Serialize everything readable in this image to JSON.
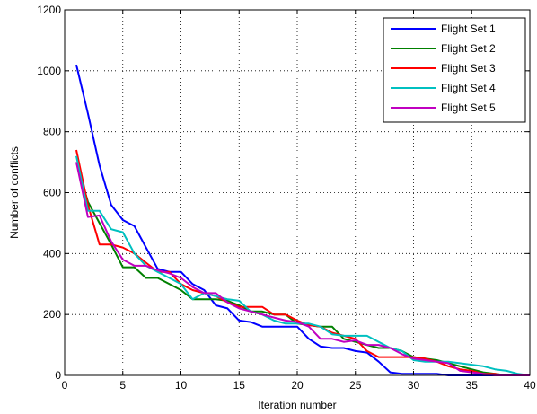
{
  "chart_data": {
    "type": "line",
    "xlabel": "Iteration number",
    "ylabel": "Number of conflicts",
    "xlim": [
      0,
      40
    ],
    "ylim": [
      0,
      1200
    ],
    "xticks": [
      0,
      5,
      10,
      15,
      20,
      25,
      30,
      35,
      40
    ],
    "yticks": [
      0,
      200,
      400,
      600,
      800,
      1000,
      1200
    ],
    "grid": true,
    "grid_style": "dotted",
    "legend_position": "top-right",
    "series": [
      {
        "name": "Flight Set 1",
        "color": "#0000ff",
        "points": [
          [
            1,
            1020
          ],
          [
            2,
            860
          ],
          [
            3,
            690
          ],
          [
            4,
            560
          ],
          [
            5,
            510
          ],
          [
            6,
            490
          ],
          [
            7,
            420
          ],
          [
            8,
            350
          ],
          [
            9,
            340
          ],
          [
            10,
            340
          ],
          [
            11,
            300
          ],
          [
            12,
            280
          ],
          [
            13,
            230
          ],
          [
            14,
            220
          ],
          [
            15,
            180
          ],
          [
            16,
            175
          ],
          [
            17,
            160
          ],
          [
            18,
            160
          ],
          [
            19,
            160
          ],
          [
            20,
            160
          ],
          [
            21,
            120
          ],
          [
            22,
            95
          ],
          [
            23,
            90
          ],
          [
            24,
            90
          ],
          [
            25,
            80
          ],
          [
            26,
            75
          ],
          [
            27,
            45
          ],
          [
            28,
            10
          ],
          [
            29,
            5
          ],
          [
            30,
            5
          ],
          [
            31,
            5
          ],
          [
            32,
            5
          ],
          [
            33,
            0
          ],
          [
            34,
            0
          ],
          [
            35,
            0
          ],
          [
            36,
            0
          ],
          [
            37,
            0
          ],
          [
            38,
            0
          ],
          [
            39,
            0
          ],
          [
            40,
            0
          ]
        ]
      },
      {
        "name": "Flight Set 2",
        "color": "#008000",
        "points": [
          [
            1,
            700
          ],
          [
            2,
            570
          ],
          [
            3,
            500
          ],
          [
            4,
            430
          ],
          [
            5,
            355
          ],
          [
            6,
            355
          ],
          [
            7,
            320
          ],
          [
            8,
            320
          ],
          [
            9,
            300
          ],
          [
            10,
            280
          ],
          [
            11,
            250
          ],
          [
            12,
            250
          ],
          [
            13,
            250
          ],
          [
            14,
            245
          ],
          [
            15,
            230
          ],
          [
            16,
            210
          ],
          [
            17,
            210
          ],
          [
            18,
            200
          ],
          [
            19,
            200
          ],
          [
            20,
            170
          ],
          [
            21,
            165
          ],
          [
            22,
            160
          ],
          [
            23,
            160
          ],
          [
            24,
            120
          ],
          [
            25,
            110
          ],
          [
            26,
            100
          ],
          [
            27,
            90
          ],
          [
            28,
            90
          ],
          [
            29,
            80
          ],
          [
            30,
            60
          ],
          [
            31,
            55
          ],
          [
            32,
            50
          ],
          [
            33,
            40
          ],
          [
            34,
            30
          ],
          [
            35,
            20
          ],
          [
            36,
            10
          ],
          [
            37,
            5
          ],
          [
            38,
            0
          ],
          [
            39,
            0
          ],
          [
            40,
            0
          ]
        ]
      },
      {
        "name": "Flight Set 3",
        "color": "#ff0000",
        "points": [
          [
            1,
            740
          ],
          [
            2,
            560
          ],
          [
            3,
            430
          ],
          [
            4,
            430
          ],
          [
            5,
            420
          ],
          [
            6,
            400
          ],
          [
            7,
            370
          ],
          [
            8,
            340
          ],
          [
            9,
            340
          ],
          [
            10,
            300
          ],
          [
            11,
            280
          ],
          [
            12,
            270
          ],
          [
            13,
            260
          ],
          [
            14,
            240
          ],
          [
            15,
            225
          ],
          [
            16,
            225
          ],
          [
            17,
            225
          ],
          [
            18,
            200
          ],
          [
            19,
            200
          ],
          [
            20,
            180
          ],
          [
            21,
            165
          ],
          [
            22,
            160
          ],
          [
            23,
            140
          ],
          [
            24,
            130
          ],
          [
            25,
            120
          ],
          [
            26,
            80
          ],
          [
            27,
            60
          ],
          [
            28,
            60
          ],
          [
            29,
            60
          ],
          [
            30,
            60
          ],
          [
            31,
            55
          ],
          [
            32,
            45
          ],
          [
            33,
            30
          ],
          [
            34,
            20
          ],
          [
            35,
            15
          ],
          [
            36,
            5
          ],
          [
            37,
            5
          ],
          [
            38,
            0
          ],
          [
            39,
            0
          ],
          [
            40,
            0
          ]
        ]
      },
      {
        "name": "Flight Set 4",
        "color": "#00c0c0",
        "points": [
          [
            1,
            720
          ],
          [
            2,
            540
          ],
          [
            3,
            540
          ],
          [
            4,
            480
          ],
          [
            5,
            470
          ],
          [
            6,
            400
          ],
          [
            7,
            360
          ],
          [
            8,
            340
          ],
          [
            9,
            320
          ],
          [
            10,
            300
          ],
          [
            11,
            250
          ],
          [
            12,
            270
          ],
          [
            13,
            260
          ],
          [
            14,
            250
          ],
          [
            15,
            245
          ],
          [
            16,
            210
          ],
          [
            17,
            200
          ],
          [
            18,
            180
          ],
          [
            19,
            170
          ],
          [
            20,
            170
          ],
          [
            21,
            170
          ],
          [
            22,
            160
          ],
          [
            23,
            135
          ],
          [
            24,
            130
          ],
          [
            25,
            130
          ],
          [
            26,
            130
          ],
          [
            27,
            110
          ],
          [
            28,
            90
          ],
          [
            29,
            80
          ],
          [
            30,
            50
          ],
          [
            31,
            45
          ],
          [
            32,
            45
          ],
          [
            33,
            45
          ],
          [
            34,
            40
          ],
          [
            35,
            35
          ],
          [
            36,
            30
          ],
          [
            37,
            20
          ],
          [
            38,
            15
          ],
          [
            39,
            5
          ],
          [
            40,
            0
          ]
        ]
      },
      {
        "name": "Flight Set 5",
        "color": "#c000c0",
        "points": [
          [
            1,
            700
          ],
          [
            2,
            520
          ],
          [
            3,
            525
          ],
          [
            4,
            440
          ],
          [
            5,
            380
          ],
          [
            6,
            360
          ],
          [
            7,
            360
          ],
          [
            8,
            345
          ],
          [
            9,
            335
          ],
          [
            10,
            320
          ],
          [
            11,
            290
          ],
          [
            12,
            270
          ],
          [
            13,
            270
          ],
          [
            14,
            240
          ],
          [
            15,
            220
          ],
          [
            16,
            210
          ],
          [
            17,
            200
          ],
          [
            18,
            190
          ],
          [
            19,
            180
          ],
          [
            20,
            175
          ],
          [
            21,
            160
          ],
          [
            22,
            120
          ],
          [
            23,
            120
          ],
          [
            24,
            110
          ],
          [
            25,
            115
          ],
          [
            26,
            100
          ],
          [
            27,
            100
          ],
          [
            28,
            90
          ],
          [
            29,
            70
          ],
          [
            30,
            55
          ],
          [
            31,
            50
          ],
          [
            32,
            45
          ],
          [
            33,
            40
          ],
          [
            34,
            15
          ],
          [
            35,
            10
          ],
          [
            36,
            5
          ],
          [
            37,
            0
          ],
          [
            38,
            0
          ],
          [
            39,
            0
          ],
          [
            40,
            0
          ]
        ]
      }
    ]
  }
}
